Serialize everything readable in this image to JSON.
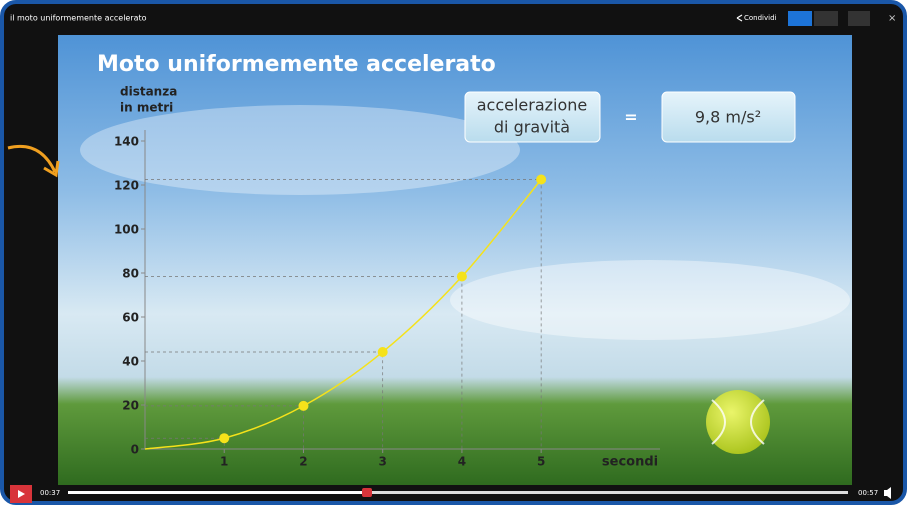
{
  "player": {
    "title": "il moto uniformemente accelerato",
    "share": "Condividi",
    "time_current": "00:37",
    "time_total": "00:57"
  },
  "chart_data": {
    "type": "line",
    "title": "Moto uniformemente accelerato",
    "y_label": [
      "distanza",
      "in metri"
    ],
    "x_label": "secondi",
    "annotation": {
      "left": [
        "accelerazione",
        "di gravità"
      ],
      "operator": "=",
      "right": "9,8 m/s²"
    },
    "x": [
      0,
      1,
      2,
      3,
      4,
      5
    ],
    "values": [
      0,
      4.9,
      19.6,
      44.1,
      78.4,
      122.5
    ],
    "color": "#f5e21a",
    "xlim": [
      0,
      6.5
    ],
    "ylim": [
      0,
      145
    ],
    "xticks": [
      1,
      2,
      3,
      4,
      5
    ],
    "yticks": [
      0,
      20,
      40,
      60,
      80,
      100,
      120,
      140
    ]
  }
}
